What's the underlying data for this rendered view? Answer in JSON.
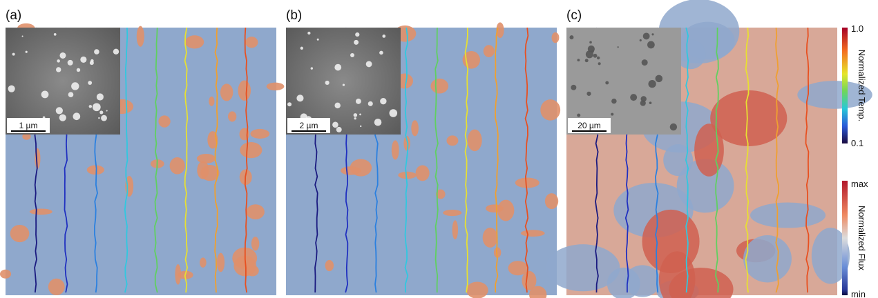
{
  "panels": [
    {
      "label": "(a)",
      "scale_bar": "1 µm"
    },
    {
      "label": "(b)",
      "scale_bar": "2 µm"
    },
    {
      "label": "(c)",
      "scale_bar": "20 µm"
    }
  ],
  "colorbars": [
    {
      "title": "Normalized Temp.",
      "top": "1.0",
      "bottom": "0.1"
    },
    {
      "title": "Normalized Flux",
      "top": "max",
      "bottom": "min"
    }
  ]
}
